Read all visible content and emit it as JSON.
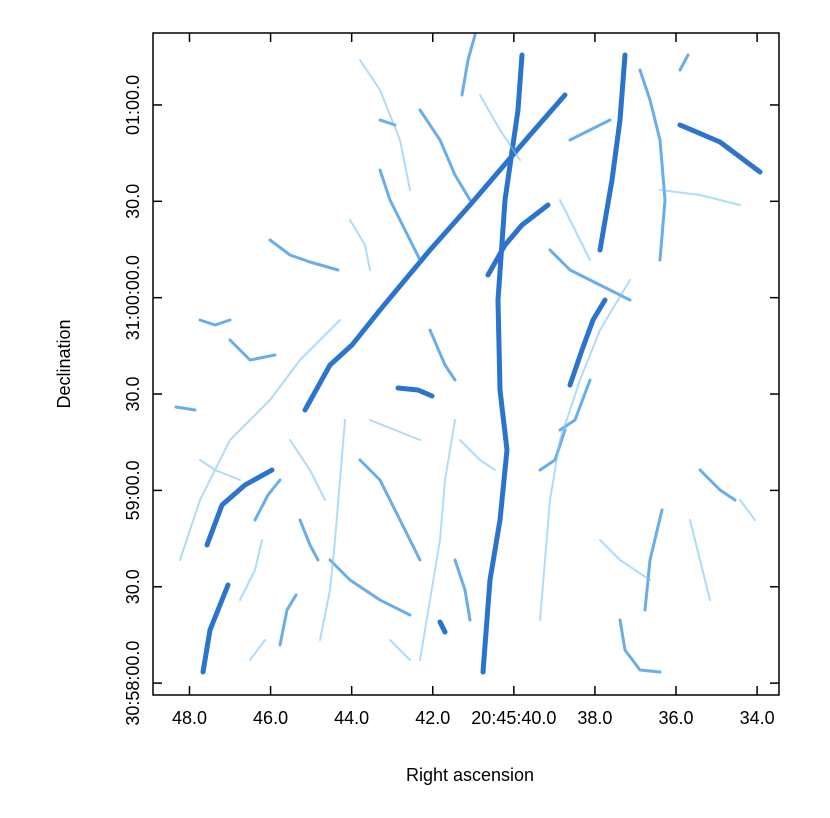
{
  "chart_data": {
    "type": "image",
    "x_label": "Right ascension",
    "y_label": "Declination",
    "xlim": [
      48.9,
      33.46
    ],
    "xticks": [
      {
        "value": 48,
        "label": "48.0"
      },
      {
        "value": 46,
        "label": "46.0"
      },
      {
        "value": 44,
        "label": "44.0"
      },
      {
        "value": 42,
        "label": "42.0"
      },
      {
        "value": 40,
        "label": "20:45:40.0"
      },
      {
        "value": 38,
        "label": "38.0"
      },
      {
        "value": 36,
        "label": "36.0"
      },
      {
        "value": 34,
        "label": "34.0"
      }
    ],
    "ylim": [
      -3.7,
      202.4
    ],
    "yticks": [
      {
        "value": 0,
        "label": "30:58:00.0"
      },
      {
        "value": 30,
        "label": "30.0"
      },
      {
        "value": 60,
        "label": "59:00.0"
      },
      {
        "value": 90,
        "label": "30.0"
      },
      {
        "value": 120,
        "label": "31:00:00.0"
      },
      {
        "value": 150,
        "label": "30.0"
      },
      {
        "value": 180,
        "label": "01:00.0"
      }
    ]
  }
}
